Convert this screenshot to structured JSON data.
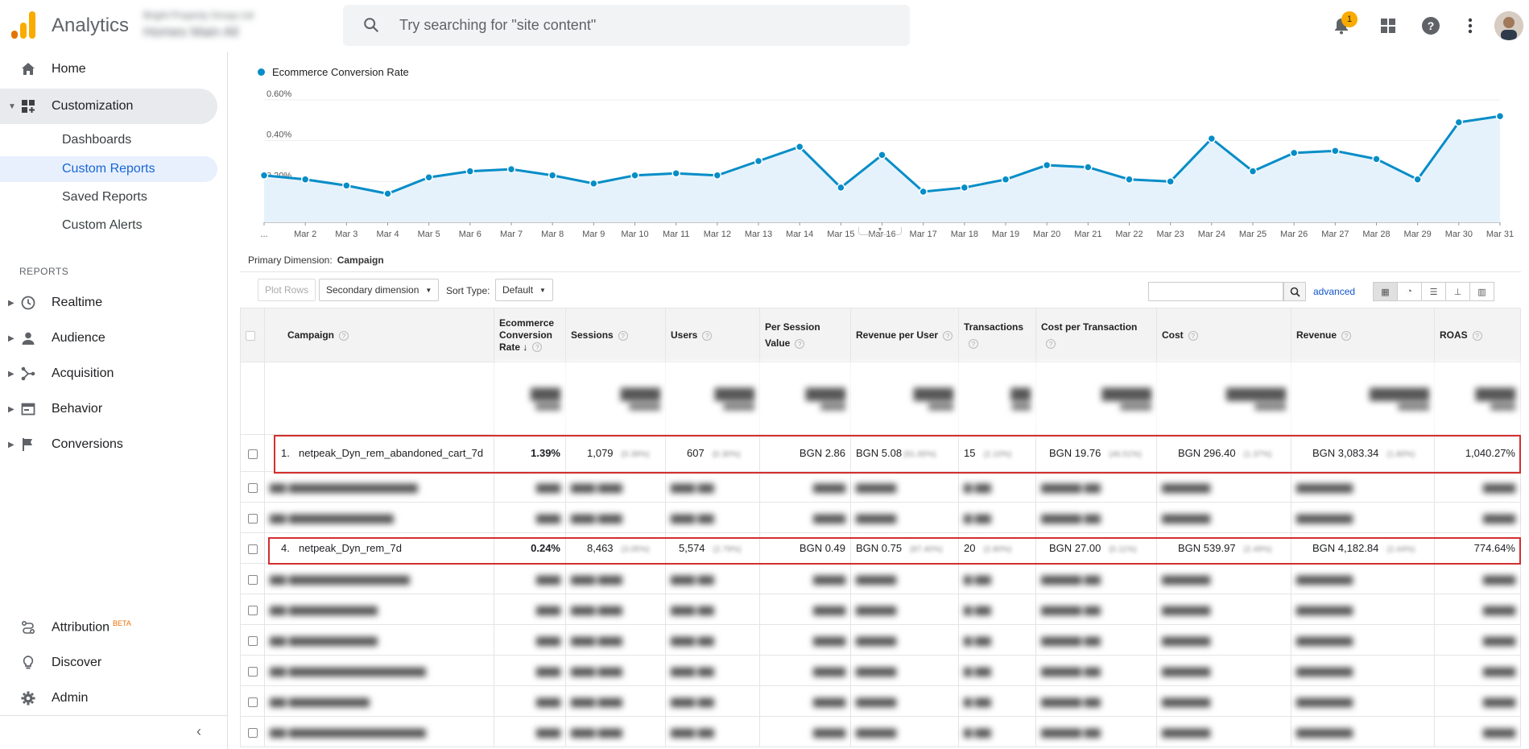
{
  "app": {
    "name": "Analytics"
  },
  "account": {
    "line1": "Bright Property Group Ltd",
    "line2": "Homes Main All"
  },
  "search": {
    "placeholder": "Try searching for \"site content\""
  },
  "topbar": {
    "notification_count": "1"
  },
  "colors": {
    "accent": "#1a73e8",
    "series": "#058dc7",
    "highlight": "#d32f2f",
    "logo_orange": "#f9ab00",
    "logo_dark": "#e37400"
  },
  "sidebar": {
    "home": "Home",
    "customization": "Customization",
    "sub": [
      "Dashboards",
      "Custom Reports",
      "Saved Reports",
      "Custom Alerts"
    ],
    "reports_header": "REPORTS",
    "reports": [
      "Realtime",
      "Audience",
      "Acquisition",
      "Behavior",
      "Conversions"
    ],
    "attribution": "Attribution",
    "beta": "BETA",
    "discover": "Discover",
    "admin": "Admin"
  },
  "chart_data": {
    "type": "line",
    "series": [
      {
        "name": "Ecommerce Conversion Rate",
        "values": [
          0.23,
          0.21,
          0.18,
          0.14,
          0.22,
          0.25,
          0.26,
          0.23,
          0.19,
          0.23,
          0.24,
          0.23,
          0.3,
          0.37,
          0.17,
          0.33,
          0.15,
          0.17,
          0.21,
          0.28,
          0.27,
          0.21,
          0.2,
          0.41,
          0.25,
          0.34,
          0.35,
          0.31,
          0.21,
          0.49,
          0.52
        ]
      }
    ],
    "categories": [
      "...",
      "Mar 2",
      "Mar 3",
      "Mar 4",
      "Mar 5",
      "Mar 6",
      "Mar 7",
      "Mar 8",
      "Mar 9",
      "Mar 10",
      "Mar 11",
      "Mar 12",
      "Mar 13",
      "Mar 14",
      "Mar 15",
      "Mar 16",
      "Mar 17",
      "Mar 18",
      "Mar 19",
      "Mar 20",
      "Mar 21",
      "Mar 22",
      "Mar 23",
      "Mar 24",
      "Mar 25",
      "Mar 26",
      "Mar 27",
      "Mar 28",
      "Mar 29",
      "Mar 30",
      "Mar 31"
    ],
    "yticks": [
      "0.60%",
      "0.40%",
      "0.20%"
    ],
    "ylim": [
      0,
      0.6
    ],
    "grid": true,
    "legend": "top-left"
  },
  "report": {
    "primary_dimension_label": "Primary Dimension:",
    "primary_dimension": "Campaign",
    "plot_rows": "Plot Rows",
    "secondary_dimension": "Secondary dimension",
    "sort_type_label": "Sort Type:",
    "sort_type": "Default",
    "advanced": "advanced",
    "columns": [
      "Campaign",
      "Ecommerce Conversion Rate",
      "Sessions",
      "Users",
      "Per Session Value",
      "Revenue per User",
      "Transactions",
      "Cost per Transaction",
      "Cost",
      "Revenue",
      "ROAS"
    ],
    "rows": [
      {
        "idx": "1.",
        "campaign": "netpeak_Dyn_rem_abandoned_cart_7d",
        "conv": "1.39%",
        "sessions": "1,079",
        "sessions_pct": "(0.39%)",
        "users": "607",
        "users_pct": "(0.30%)",
        "psv": "BGN 2.86",
        "rpu": "BGN 5.08",
        "rpu_pct": "(91.65%)",
        "tx": "15",
        "tx_pct": "(2.10%)",
        "cpt": "BGN 19.76",
        "cpt_pct": "(46.51%)",
        "cost": "BGN 296.40",
        "cost_pct": "(1.37%)",
        "rev": "BGN 3,083.34",
        "rev_pct": "(1.80%)",
        "roas": "1,040.27%"
      },
      {
        "idx": "4.",
        "campaign": "netpeak_Dyn_rem_7d",
        "conv": "0.24%",
        "sessions": "8,463",
        "sessions_pct": "(3.05%)",
        "users": "5,574",
        "users_pct": "(2.79%)",
        "psv": "BGN 0.49",
        "rpu": "BGN 0.75",
        "rpu_pct": "(87.40%)",
        "tx": "20",
        "tx_pct": "(2.80%)",
        "cpt": "BGN 27.00",
        "cpt_pct": "(0.11%)",
        "cost": "BGN 539.97",
        "cost_pct": "(2.49%)",
        "rev": "BGN 4,182.84",
        "rev_pct": "(2.44%)",
        "roas": "774.64%"
      }
    ]
  }
}
